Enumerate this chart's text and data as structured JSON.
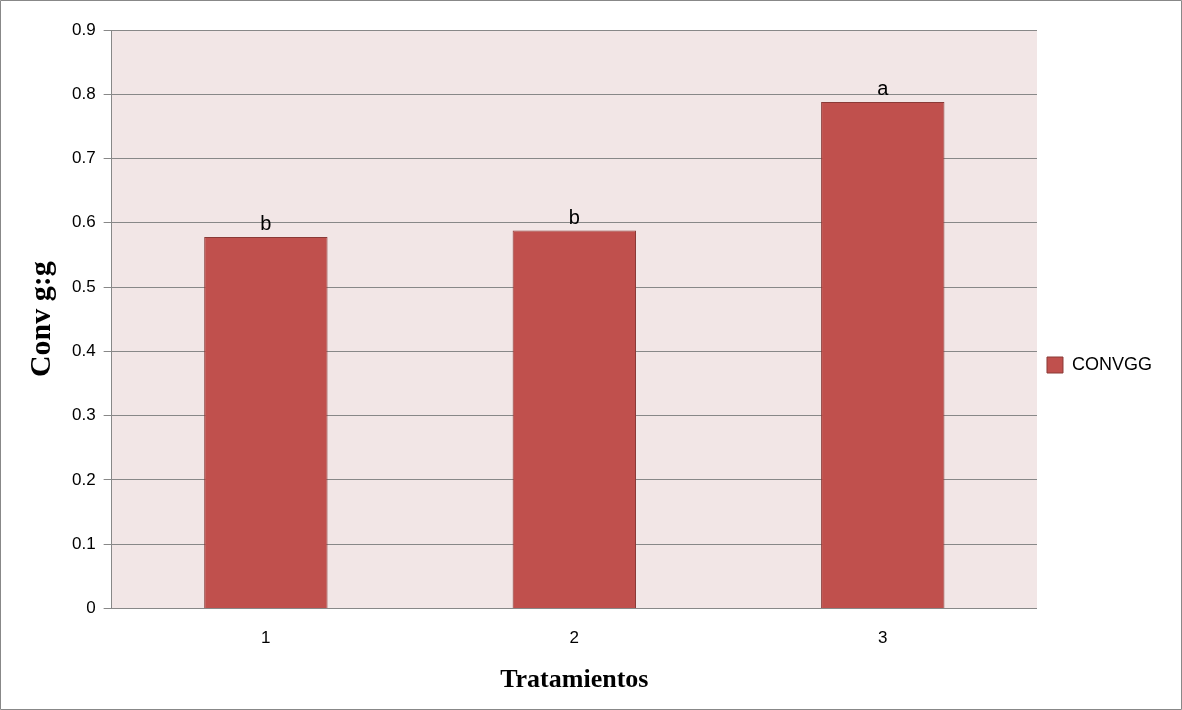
{
  "chart_data": {
    "type": "bar",
    "xlabel": "Tratamientos",
    "ylabel": "Conv g:g",
    "categories": [
      "1",
      "2",
      "3"
    ],
    "series": [
      {
        "name": "CONVGG",
        "color": "#c0504d",
        "values": [
          0.578,
          0.588,
          0.788
        ]
      }
    ],
    "ylim": [
      0,
      0.9
    ],
    "yticks": [
      0,
      0.1,
      0.2,
      0.3,
      0.4,
      0.5,
      0.6,
      0.7,
      0.8,
      0.9
    ],
    "grid": "y",
    "legend": "right",
    "annotations": [
      {
        "text": "b",
        "x": "1",
        "y": 0.578
      },
      {
        "text": "b",
        "x": "2",
        "y": 0.588
      },
      {
        "text": "a",
        "x": "3",
        "y": 0.788
      }
    ]
  }
}
